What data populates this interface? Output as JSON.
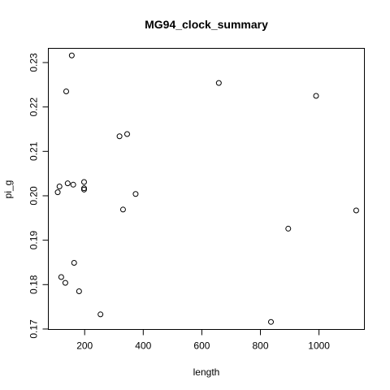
{
  "chart_data": {
    "type": "scatter",
    "title": "MG94_clock_summary",
    "xlabel": "length",
    "ylabel": "pi_g",
    "xlim": [
      76,
      1155
    ],
    "ylim": [
      0.1699,
      0.2332
    ],
    "xticks": [
      200,
      400,
      600,
      800,
      1000
    ],
    "yticks": [
      0.17,
      0.18,
      0.19,
      0.2,
      0.21,
      0.22,
      0.23
    ],
    "ytick_labels": [
      "0.17",
      "0.18",
      "0.19",
      "0.20",
      "0.21",
      "0.22",
      "0.23"
    ],
    "grid": false,
    "marker": "open-circle",
    "points": [
      {
        "x": 156,
        "y": 0.2316
      },
      {
        "x": 137,
        "y": 0.2235
      },
      {
        "x": 658,
        "y": 0.2254
      },
      {
        "x": 990,
        "y": 0.2225
      },
      {
        "x": 345,
        "y": 0.2139
      },
      {
        "x": 319,
        "y": 0.2134
      },
      {
        "x": 198,
        "y": 0.2031
      },
      {
        "x": 142,
        "y": 0.2028
      },
      {
        "x": 161,
        "y": 0.2025
      },
      {
        "x": 114,
        "y": 0.2021
      },
      {
        "x": 198,
        "y": 0.2017
      },
      {
        "x": 198,
        "y": 0.2014
      },
      {
        "x": 108,
        "y": 0.2008
      },
      {
        "x": 374,
        "y": 0.2004
      },
      {
        "x": 331,
        "y": 0.1969
      },
      {
        "x": 1127,
        "y": 0.1967
      },
      {
        "x": 895,
        "y": 0.1926
      },
      {
        "x": 164,
        "y": 0.1849
      },
      {
        "x": 120,
        "y": 0.1817
      },
      {
        "x": 134,
        "y": 0.1804
      },
      {
        "x": 181,
        "y": 0.1785
      },
      {
        "x": 254,
        "y": 0.1733
      },
      {
        "x": 836,
        "y": 0.1716
      }
    ]
  }
}
